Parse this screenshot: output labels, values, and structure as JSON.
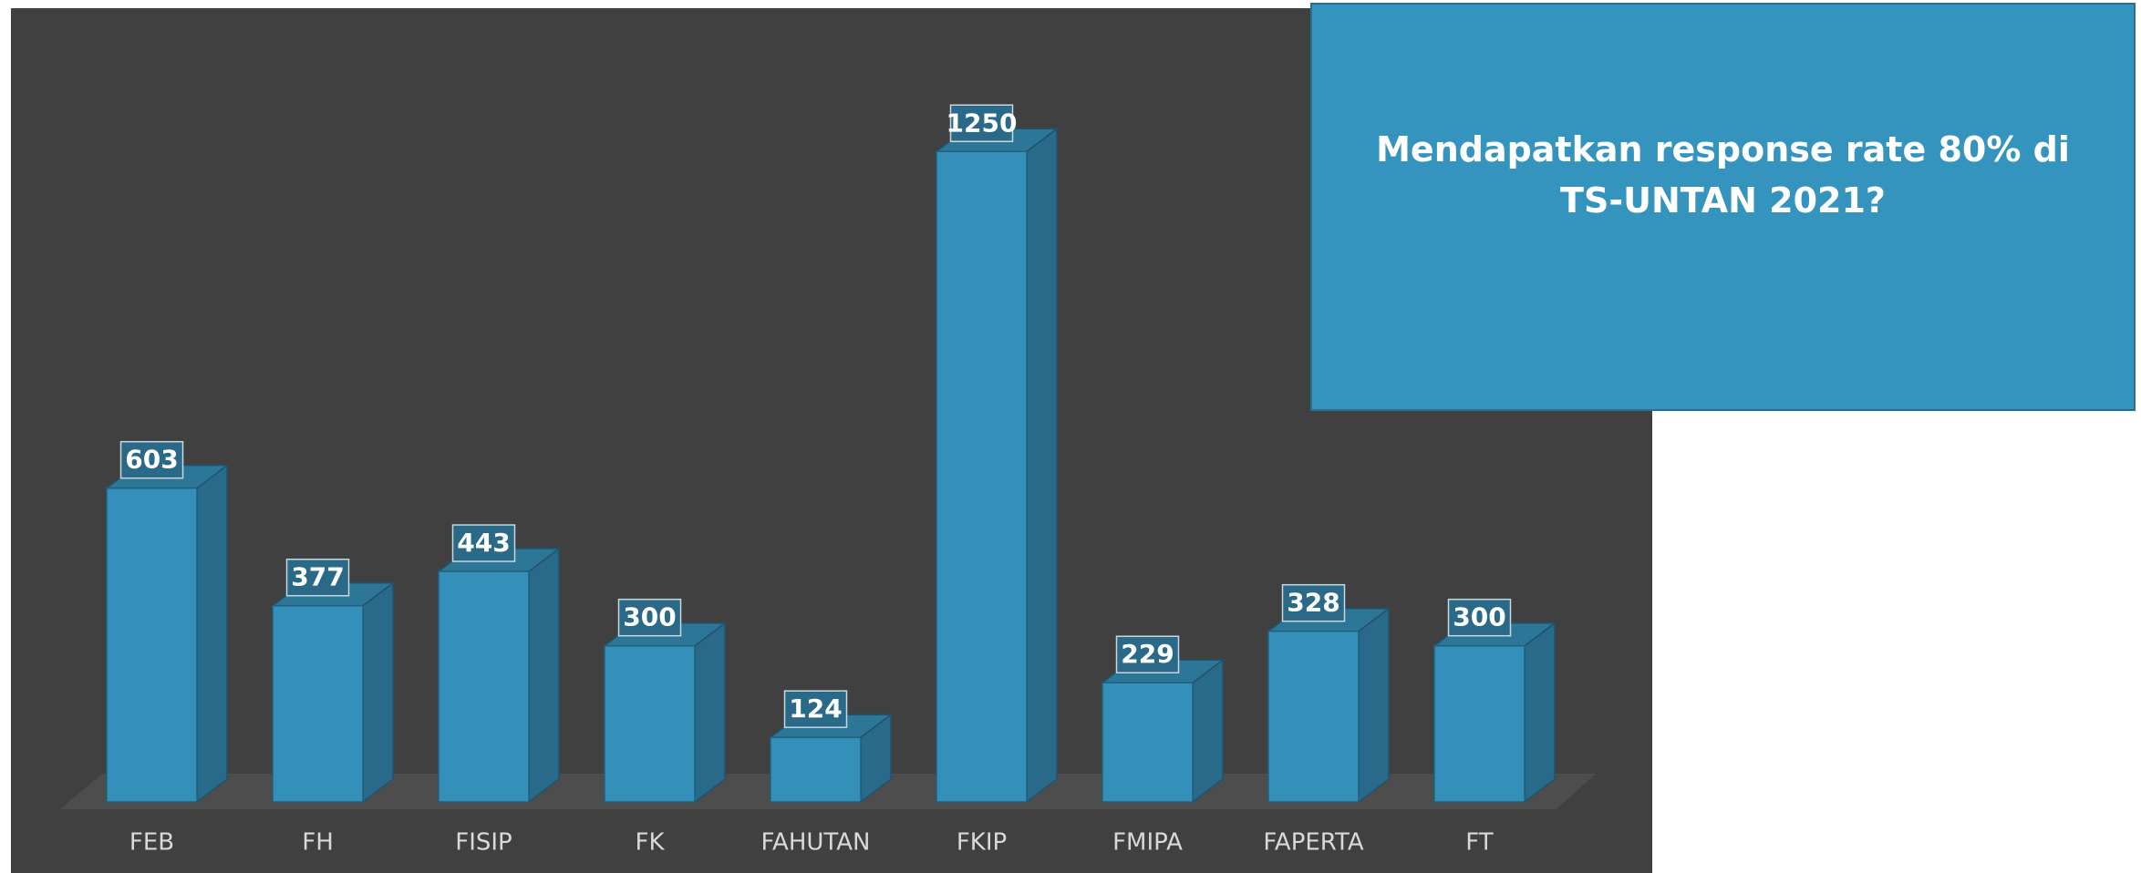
{
  "chart_data": {
    "type": "bar3d",
    "title": "Mendapatkan response rate 80% di TS-UNTAN 2021?",
    "categories": [
      "FEB",
      "FH",
      "FISIP",
      "FK",
      "FAHUTAN",
      "FKIP",
      "FMIPA",
      "FAPERTA",
      "FT"
    ],
    "values": [
      603,
      377,
      443,
      300,
      124,
      1250,
      229,
      328,
      300
    ],
    "color": "#3490b8"
  }
}
